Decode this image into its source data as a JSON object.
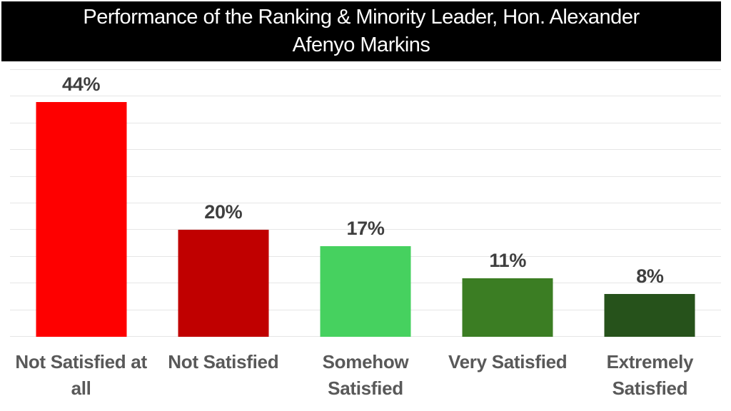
{
  "title": {
    "lines": [
      "Performance of the Ranking & Minority Leader, Hon. Alexander",
      "Afenyo Markins"
    ]
  },
  "chart_data": {
    "type": "bar",
    "title": "Performance of the Ranking & Minority Leader, Hon. Alexander Afenyo Markins",
    "categories": [
      "Not Satisfied at all",
      "Not Satisfied",
      "Somehow Satisfied",
      "Very Satisfied",
      "Extremely Satisfied"
    ],
    "values": [
      44,
      20,
      17,
      11,
      8
    ],
    "value_labels": [
      "44%",
      "20%",
      "17%",
      "11%",
      "8%"
    ],
    "bar_colors": [
      "#FE0000",
      "#C00000",
      "#46D15F",
      "#3B7D23",
      "#26521B"
    ],
    "xlabel": "",
    "ylabel": "",
    "ylim": [
      0,
      50
    ],
    "gridline_step": 5,
    "grid": true,
    "legend": "none"
  },
  "colors": {
    "banner_bg": "#000000",
    "banner_text": "#FFFFFF",
    "value_label": "#3F3F3F",
    "category_label": "#595959",
    "gridline": "#E6E6E6",
    "background": "#FFFFFF"
  }
}
